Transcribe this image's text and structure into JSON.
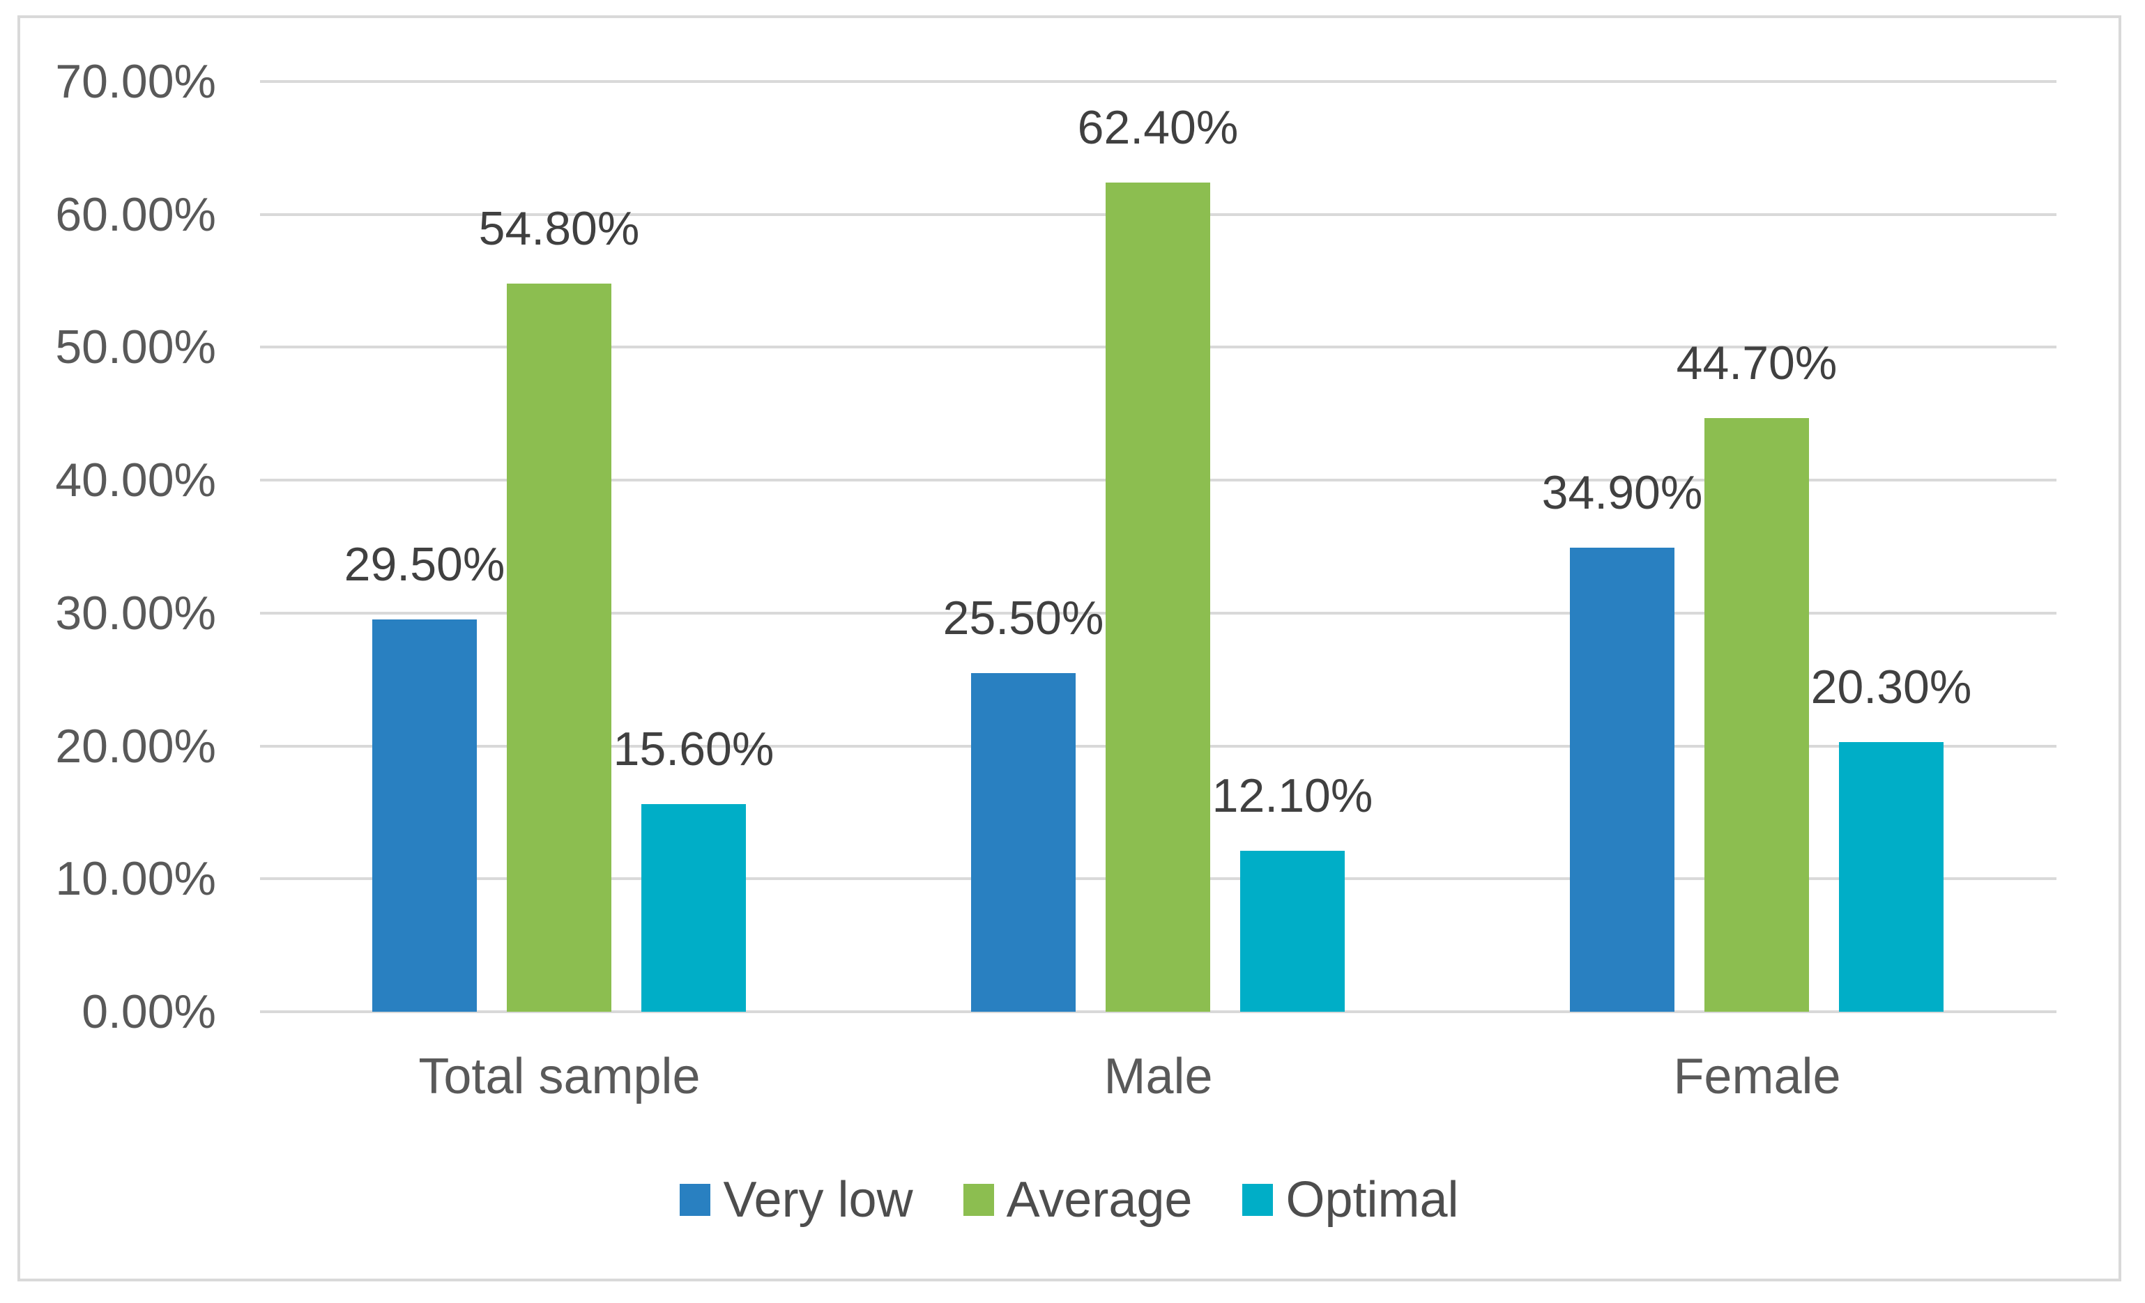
{
  "chart_data": {
    "type": "bar",
    "title": "",
    "xlabel": "",
    "ylabel": "",
    "categories": [
      "Total sample",
      "Male",
      "Female"
    ],
    "series": [
      {
        "name": "Very low",
        "color": "#2980C1",
        "values": [
          29.5,
          25.5,
          34.9
        ],
        "labels": [
          "29.50%",
          "25.50%",
          "34.90%"
        ]
      },
      {
        "name": "Average",
        "color": "#8CBE50",
        "values": [
          54.8,
          62.4,
          44.7
        ],
        "labels": [
          "54.80%",
          "62.40%",
          "44.70%"
        ]
      },
      {
        "name": "Optimal",
        "color": "#00AEC7",
        "values": [
          15.6,
          12.1,
          20.3
        ],
        "labels": [
          "15.60%",
          "12.10%",
          "20.30%"
        ]
      }
    ],
    "y_axis": {
      "min": 0,
      "max": 70,
      "tick_step": 10,
      "tick_labels": [
        "0.00%",
        "10.00%",
        "20.00%",
        "30.00%",
        "40.00%",
        "50.00%",
        "60.00%",
        "70.00%"
      ],
      "grid": true
    },
    "legend_position": "bottom"
  },
  "palette": {
    "gridline": "#d9d9d9",
    "frame_border": "#d9d9d9",
    "tick_text": "#595959",
    "category_text": "#595959",
    "data_label_text": "#404040",
    "legend_text": "#4d4d4d",
    "background": "#ffffff"
  }
}
